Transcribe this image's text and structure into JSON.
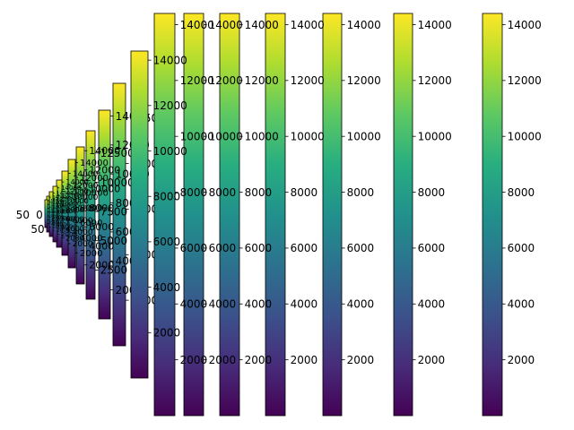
{
  "chart_data": {
    "type": "heatmap",
    "colormap": "viridis",
    "colorbar_range": [
      0,
      14400
    ],
    "colorbars": [
      {
        "ticks": [
          2000,
          4000,
          6000,
          8000,
          10000,
          12000,
          14000
        ]
      },
      {
        "ticks": [
          2000,
          4000,
          6000,
          8000,
          10000,
          12000,
          14000
        ]
      },
      {
        "ticks": [
          2000,
          4000,
          6000,
          8000,
          10000,
          12000,
          14000
        ]
      },
      {
        "ticks": [
          2000,
          4000,
          6000,
          8000,
          10000,
          12000,
          14000
        ]
      },
      {
        "ticks": [
          2000,
          4000,
          6000,
          8000,
          10000,
          12000,
          14000
        ]
      },
      {
        "ticks": [
          2000,
          4000,
          6000,
          8000,
          10000,
          12000,
          14000
        ]
      },
      {
        "ticks": [
          2000,
          4000,
          6000,
          8000,
          10000,
          12000,
          14000
        ]
      },
      {
        "ticks": [
          2000,
          4000,
          6000,
          8000,
          10000,
          12000,
          14000
        ]
      },
      {
        "ticks": [
          2000,
          4000,
          6000,
          8000,
          10000,
          12000,
          14000
        ]
      },
      {
        "ticks": [
          2500,
          5000,
          7500,
          10000,
          12500
        ]
      }
    ],
    "main_axes": {
      "xticks": [
        0,
        50
      ],
      "yticks": [
        0,
        50
      ]
    }
  }
}
